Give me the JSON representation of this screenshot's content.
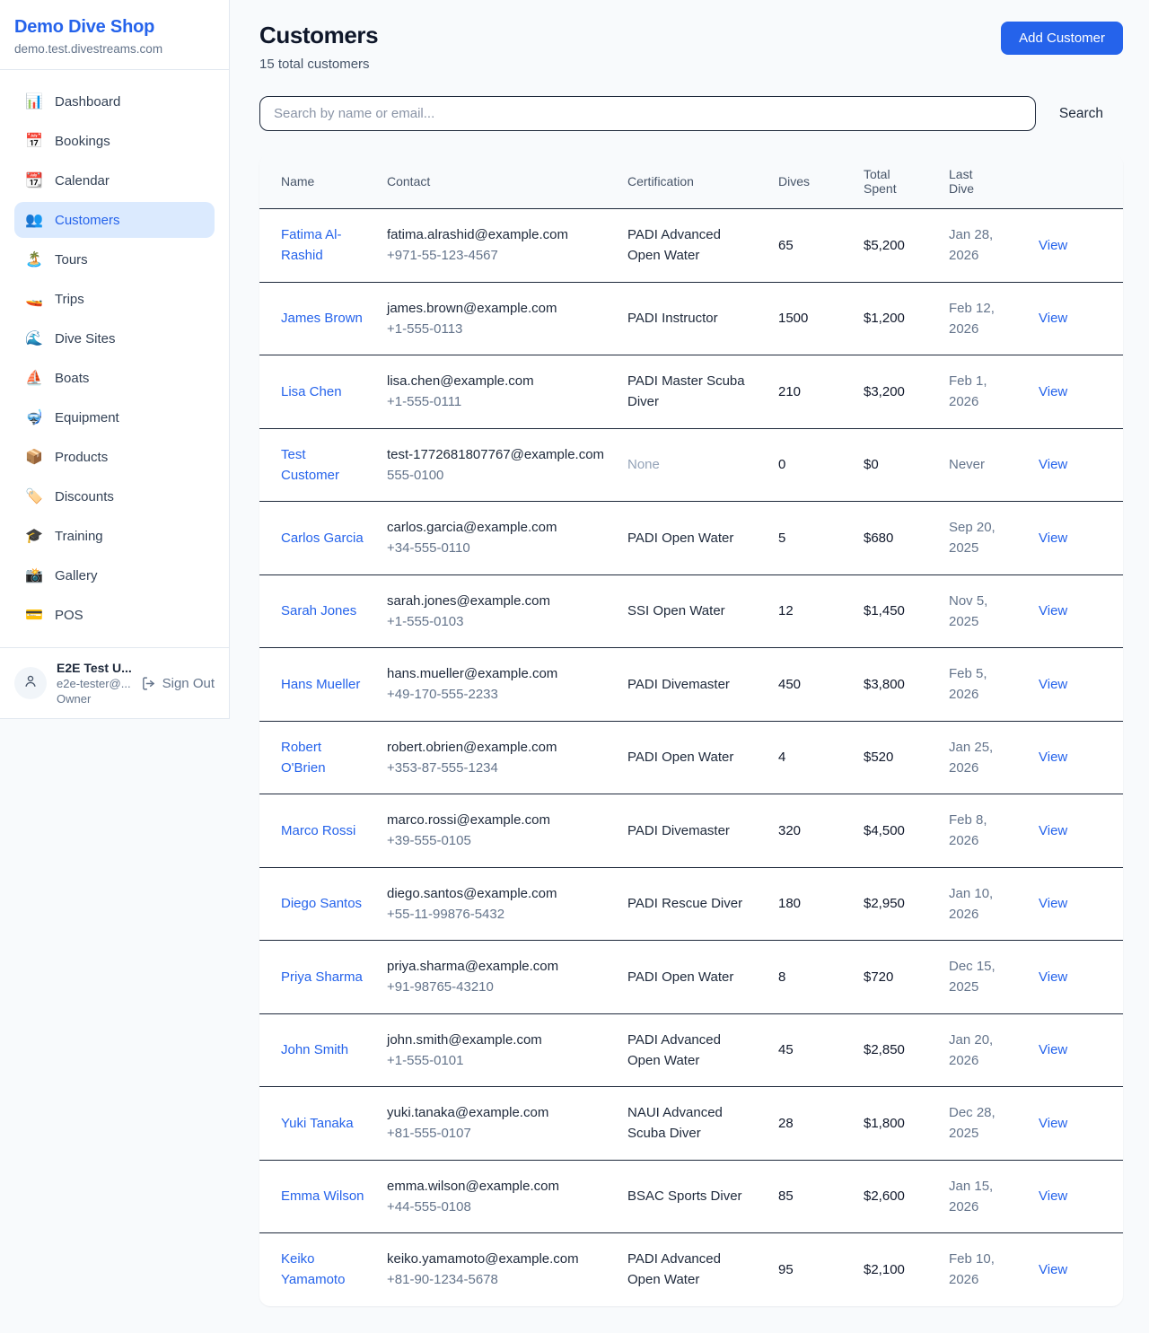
{
  "sidebar": {
    "shop_name": "Demo Dive Shop",
    "shop_domain": "demo.test.divestreams.com",
    "items": [
      {
        "label": "Dashboard",
        "icon": "📊",
        "icon_name": "bar-chart-icon",
        "active": false
      },
      {
        "label": "Bookings",
        "icon": "📅",
        "icon_name": "calendar-date-icon",
        "active": false
      },
      {
        "label": "Calendar",
        "icon": "📆",
        "icon_name": "calendar-icon",
        "active": false
      },
      {
        "label": "Customers",
        "icon": "👥",
        "icon_name": "people-icon",
        "active": true
      },
      {
        "label": "Tours",
        "icon": "🏝️",
        "icon_name": "island-icon",
        "active": false
      },
      {
        "label": "Trips",
        "icon": "🚤",
        "icon_name": "speedboat-icon",
        "active": false
      },
      {
        "label": "Dive Sites",
        "icon": "🌊",
        "icon_name": "wave-icon",
        "active": false
      },
      {
        "label": "Boats",
        "icon": "⛵",
        "icon_name": "sailboat-icon",
        "active": false
      },
      {
        "label": "Equipment",
        "icon": "🤿",
        "icon_name": "diving-mask-icon",
        "active": false
      },
      {
        "label": "Products",
        "icon": "📦",
        "icon_name": "package-icon",
        "active": false
      },
      {
        "label": "Discounts",
        "icon": "🏷️",
        "icon_name": "tag-icon",
        "active": false
      },
      {
        "label": "Training",
        "icon": "🎓",
        "icon_name": "graduation-cap-icon",
        "active": false
      },
      {
        "label": "Gallery",
        "icon": "📸",
        "icon_name": "camera-icon",
        "active": false
      },
      {
        "label": "POS",
        "icon": "💳",
        "icon_name": "credit-card-icon",
        "active": false
      }
    ],
    "user": {
      "name": "E2E Test U...",
      "email": "e2e-tester@...",
      "role": "Owner",
      "sign_out_label": "Sign Out"
    }
  },
  "header": {
    "title": "Customers",
    "subtitle": "15 total customers",
    "add_button_label": "Add Customer"
  },
  "search": {
    "placeholder": "Search by name or email...",
    "button_label": "Search"
  },
  "table": {
    "columns": [
      "Name",
      "Contact",
      "Certification",
      "Dives",
      "Total Spent",
      "Last Dive"
    ],
    "view_label": "View",
    "rows": [
      {
        "name": "Fatima Al-Rashid",
        "email": "fatima.alrashid@example.com",
        "phone": "+971-55-123-4567",
        "certification": "PADI Advanced Open Water",
        "dives": "65",
        "total_spent": "$5,200",
        "last_dive": "Jan 28, 2026"
      },
      {
        "name": "James Brown",
        "email": "james.brown@example.com",
        "phone": "+1-555-0113",
        "certification": "PADI Instructor",
        "dives": "1500",
        "total_spent": "$1,200",
        "last_dive": "Feb 12, 2026"
      },
      {
        "name": "Lisa Chen",
        "email": "lisa.chen@example.com",
        "phone": "+1-555-0111",
        "certification": "PADI Master Scuba Diver",
        "dives": "210",
        "total_spent": "$3,200",
        "last_dive": "Feb 1, 2026"
      },
      {
        "name": "Test Customer",
        "email": "test-1772681807767@example.com",
        "phone": "555-0100",
        "certification": "None",
        "dives": "0",
        "total_spent": "$0",
        "last_dive": "Never"
      },
      {
        "name": "Carlos Garcia",
        "email": "carlos.garcia@example.com",
        "phone": "+34-555-0110",
        "certification": "PADI Open Water",
        "dives": "5",
        "total_spent": "$680",
        "last_dive": "Sep 20, 2025"
      },
      {
        "name": "Sarah Jones",
        "email": "sarah.jones@example.com",
        "phone": "+1-555-0103",
        "certification": "SSI Open Water",
        "dives": "12",
        "total_spent": "$1,450",
        "last_dive": "Nov 5, 2025"
      },
      {
        "name": "Hans Mueller",
        "email": "hans.mueller@example.com",
        "phone": "+49-170-555-2233",
        "certification": "PADI Divemaster",
        "dives": "450",
        "total_spent": "$3,800",
        "last_dive": "Feb 5, 2026"
      },
      {
        "name": "Robert O'Brien",
        "email": "robert.obrien@example.com",
        "phone": "+353-87-555-1234",
        "certification": "PADI Open Water",
        "dives": "4",
        "total_spent": "$520",
        "last_dive": "Jan 25, 2026"
      },
      {
        "name": "Marco Rossi",
        "email": "marco.rossi@example.com",
        "phone": "+39-555-0105",
        "certification": "PADI Divemaster",
        "dives": "320",
        "total_spent": "$4,500",
        "last_dive": "Feb 8, 2026"
      },
      {
        "name": "Diego Santos",
        "email": "diego.santos@example.com",
        "phone": "+55-11-99876-5432",
        "certification": "PADI Rescue Diver",
        "dives": "180",
        "total_spent": "$2,950",
        "last_dive": "Jan 10, 2026"
      },
      {
        "name": "Priya Sharma",
        "email": "priya.sharma@example.com",
        "phone": "+91-98765-43210",
        "certification": "PADI Open Water",
        "dives": "8",
        "total_spent": "$720",
        "last_dive": "Dec 15, 2025"
      },
      {
        "name": "John Smith",
        "email": "john.smith@example.com",
        "phone": "+1-555-0101",
        "certification": "PADI Advanced Open Water",
        "dives": "45",
        "total_spent": "$2,850",
        "last_dive": "Jan 20, 2026"
      },
      {
        "name": "Yuki Tanaka",
        "email": "yuki.tanaka@example.com",
        "phone": "+81-555-0107",
        "certification": "NAUI Advanced Scuba Diver",
        "dives": "28",
        "total_spent": "$1,800",
        "last_dive": "Dec 28, 2025"
      },
      {
        "name": "Emma Wilson",
        "email": "emma.wilson@example.com",
        "phone": "+44-555-0108",
        "certification": "BSAC Sports Diver",
        "dives": "85",
        "total_spent": "$2,600",
        "last_dive": "Jan 15, 2026"
      },
      {
        "name": "Keiko Yamamoto",
        "email": "keiko.yamamoto@example.com",
        "phone": "+81-90-1234-5678",
        "certification": "PADI Advanced Open Water",
        "dives": "95",
        "total_spent": "$2,100",
        "last_dive": "Feb 10, 2026"
      }
    ]
  },
  "colors": {
    "accent": "#2563eb",
    "active_item_bg": "#dbeafe",
    "link": "#2563eb",
    "row_border": "#1e293b",
    "page_bg": "#f8fafc"
  }
}
